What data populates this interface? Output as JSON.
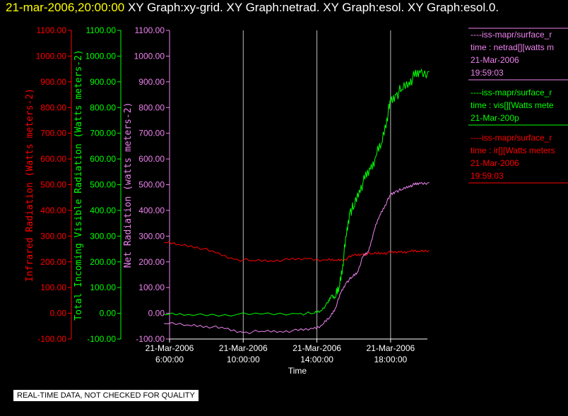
{
  "header": {
    "timestamp": "21-mar-2006,20:00:00",
    "titles": "XY Graph:xy-grid.  XY Graph:netrad.  XY Graph:esol.  XY Graph:esol.0."
  },
  "disclaimer": "REAL-TIME DATA, NOT CHECKED FOR QUALITY",
  "chart_data": {
    "type": "line",
    "xlabel": "Time",
    "x_ticks": [
      {
        "hour": 6,
        "date": "21-Mar-2006",
        "time": "6:00:00"
      },
      {
        "hour": 10,
        "date": "21-Mar-2006",
        "time": "10:00:00"
      },
      {
        "hour": 14,
        "date": "21-Mar-2006",
        "time": "14:00:00"
      },
      {
        "hour": 18,
        "date": "21-Mar-2006",
        "time": "18:00:00"
      }
    ],
    "xlim": [
      6,
      20
    ],
    "grid_vertical": [
      10,
      14,
      18
    ],
    "y_ticks": [
      "-100.00",
      "0.00",
      "100.00",
      "200.00",
      "300.00",
      "400.00",
      "500.00",
      "600.00",
      "700.00",
      "800.00",
      "900.00",
      "1000.00",
      "1100.00"
    ],
    "ylim": [
      -100,
      1100
    ],
    "axes": [
      {
        "label": "Infrared Radiation (Watts meters-2)",
        "color": "#ff0000"
      },
      {
        "label": "Total Incoming Visible Radiation (Watts meters-2)",
        "color": "#00ff00"
      },
      {
        "label": "Net Radiation (watts meters-2)",
        "color": "#ee82ee"
      }
    ],
    "series": [
      {
        "color": "#ff0000",
        "x": [
          5.7,
          6.5,
          7.5,
          8.5,
          9.5,
          10.5,
          11.5,
          12.5,
          13.5,
          14.5,
          15.0,
          15.5,
          16.0,
          16.5,
          17.0,
          17.5,
          18.0,
          18.5,
          19.0,
          19.5,
          20.1
        ],
        "y": [
          275,
          268,
          258,
          235,
          210,
          205,
          205,
          208,
          212,
          207,
          207,
          210,
          225,
          230,
          232,
          235,
          235,
          238,
          240,
          242,
          245
        ]
      },
      {
        "color": "#00ff00",
        "x": [
          5.7,
          7.0,
          9.0,
          11.0,
          13.0,
          13.8,
          14.2,
          14.6,
          14.8,
          15.0,
          15.2,
          15.4,
          15.6,
          15.8,
          16.0,
          16.3,
          16.6,
          16.9,
          17.2,
          17.5,
          17.8,
          18.0,
          18.3,
          18.6,
          19.0,
          19.3,
          19.6,
          20.1
        ],
        "y": [
          -5,
          -5,
          -5,
          -3,
          -2,
          0,
          10,
          40,
          70,
          60,
          100,
          190,
          300,
          400,
          410,
          480,
          520,
          560,
          610,
          660,
          760,
          820,
          850,
          870,
          900,
          920,
          935,
          940
        ]
      },
      {
        "color": "#ee82ee",
        "x": [
          5.7,
          7.0,
          8.0,
          9.0,
          10.0,
          11.0,
          12.0,
          13.0,
          13.8,
          14.3,
          14.7,
          15.0,
          15.3,
          15.6,
          15.9,
          16.2,
          16.5,
          16.8,
          17.1,
          17.4,
          17.7,
          18.0,
          18.3,
          18.6,
          19.0,
          19.3,
          19.6,
          20.1
        ],
        "y": [
          -40,
          -45,
          -50,
          -60,
          -75,
          -70,
          -70,
          -67,
          -60,
          -45,
          -15,
          20,
          80,
          120,
          140,
          160,
          220,
          240,
          320,
          380,
          420,
          460,
          475,
          480,
          495,
          500,
          505,
          508
        ]
      }
    ],
    "legend": [
      {
        "color": "#ee82ee",
        "lines": [
          "----iss-mapr/surface_r",
          "time : netrad[][watts m",
          "21-Mar-2006",
          "19:59:03"
        ]
      },
      {
        "color": "#00ff00",
        "lines": [
          "----iss-mapr/surface_r",
          "time : vis[][Watts mete",
          "21-Mar-200p"
        ]
      },
      {
        "color": "#ff0000",
        "lines": [
          "----iss-mapr/surface_r",
          "time : ir[][Watts meters",
          "21-Mar-2006",
          "19:59:03"
        ]
      }
    ]
  }
}
